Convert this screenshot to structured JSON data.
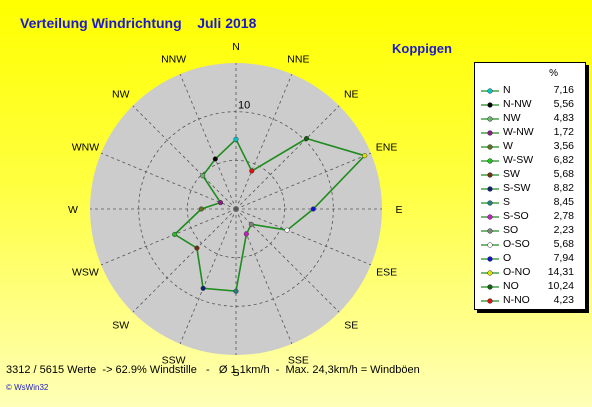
{
  "title": "Verteilung Windrichtung    Juli 2018",
  "station": "Koppigen",
  "footer": "3312 / 5615 Werte  -> 62.9% Windstille   -   Ø 1,1km/h  -  Max. 24,3km/h = Windböen",
  "brand": "© WsWin32",
  "legend_header": "%",
  "chart_data": {
    "type": "radar",
    "title": "Verteilung Windrichtung    Juli 2018",
    "directions": [
      "N",
      "NNE",
      "NE",
      "ENE",
      "E",
      "ESE",
      "SE",
      "SSE",
      "S",
      "SSW",
      "SW",
      "WSW",
      "W",
      "WNW",
      "NW",
      "NNW"
    ],
    "rlim": [
      0,
      15
    ],
    "ring_label": "10",
    "grid": true,
    "legend_position": "right",
    "series_color": "#1e8c1e",
    "legend": [
      {
        "label": "N",
        "value": "7,16",
        "color": "#00c8c8"
      },
      {
        "label": "N-NW",
        "value": "5,56",
        "color": "#000000"
      },
      {
        "label": "NW",
        "value": "4,83",
        "color": "#6ab06a"
      },
      {
        "label": "W-NW",
        "value": "1,72",
        "color": "#8a1a8a"
      },
      {
        "label": "W",
        "value": "3,56",
        "color": "#607020"
      },
      {
        "label": "W-SW",
        "value": "6,82",
        "color": "#20c020"
      },
      {
        "label": "SW",
        "value": "5,68",
        "color": "#703010"
      },
      {
        "label": "S-SW",
        "value": "8,82",
        "color": "#102070"
      },
      {
        "label": "S",
        "value": "8,45",
        "color": "#208080"
      },
      {
        "label": "S-SO",
        "value": "2,78",
        "color": "#c020c0"
      },
      {
        "label": "SO",
        "value": "2,23",
        "color": "#808080"
      },
      {
        "label": "O-SO",
        "value": "5,68",
        "color": "#ffffff"
      },
      {
        "label": "O",
        "value": "7,94",
        "color": "#1010d0"
      },
      {
        "label": "O-NO",
        "value": "14,31",
        "color": "#e0e000"
      },
      {
        "label": "NO",
        "value": "10,24",
        "color": "#106010"
      },
      {
        "label": "N-NO",
        "value": "4,23",
        "color": "#e01010"
      }
    ],
    "values": {
      "N": 7.16,
      "NNE": 4.23,
      "NE": 10.24,
      "ENE": 14.31,
      "E": 7.94,
      "ESE": 5.68,
      "SE": 2.23,
      "SSE": 2.78,
      "S": 8.45,
      "SSW": 8.82,
      "SW": 5.68,
      "WSW": 6.82,
      "W": 3.56,
      "WNW": 1.72,
      "NW": 4.83,
      "NNW": 5.56
    }
  }
}
